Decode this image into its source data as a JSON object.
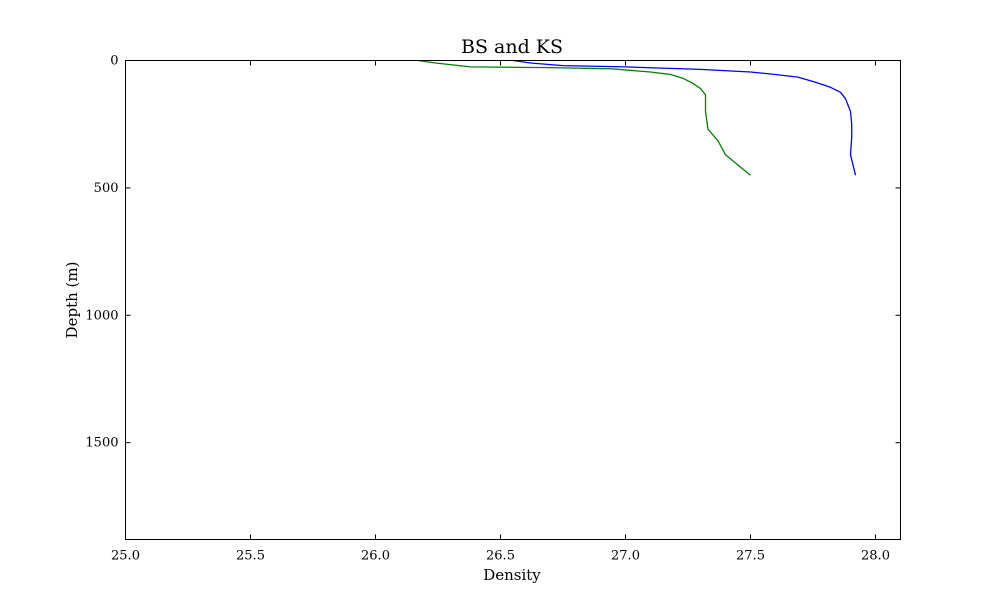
{
  "chart_data": {
    "type": "line",
    "title": "BS and KS",
    "xlabel": "Density",
    "ylabel": "Depth (m)",
    "xlim": [
      25.0,
      28.1
    ],
    "ylim": [
      0,
      1880
    ],
    "y_inverted": true,
    "grid": false,
    "x_ticks": [
      "25.0",
      "25.5",
      "26.0",
      "26.5",
      "27.0",
      "27.5",
      "28.0"
    ],
    "x_tick_values": [
      25.0,
      25.5,
      26.0,
      26.5,
      27.0,
      27.5,
      28.0
    ],
    "y_ticks": [
      "0",
      "500",
      "1000",
      "1500"
    ],
    "y_tick_values": [
      0,
      500,
      1000,
      1500
    ],
    "series": [
      {
        "color": "#0000ff",
        "points": [
          [
            26.55,
            0
          ],
          [
            26.62,
            10
          ],
          [
            26.75,
            20
          ],
          [
            27.0,
            25
          ],
          [
            27.3,
            35
          ],
          [
            27.5,
            45
          ],
          [
            27.6,
            55
          ],
          [
            27.69,
            65
          ],
          [
            27.76,
            85
          ],
          [
            27.82,
            105
          ],
          [
            27.86,
            125
          ],
          [
            27.88,
            150
          ],
          [
            27.9,
            200
          ],
          [
            27.905,
            250
          ],
          [
            27.905,
            300
          ],
          [
            27.9,
            370
          ],
          [
            27.92,
            450
          ]
        ]
      },
      {
        "color": "#008000",
        "points": [
          [
            26.17,
            0
          ],
          [
            26.24,
            10
          ],
          [
            26.38,
            25
          ],
          [
            26.7,
            28
          ],
          [
            26.95,
            33
          ],
          [
            27.1,
            45
          ],
          [
            27.18,
            55
          ],
          [
            27.23,
            70
          ],
          [
            27.27,
            90
          ],
          [
            27.3,
            110
          ],
          [
            27.32,
            135
          ],
          [
            27.32,
            200
          ],
          [
            27.33,
            270
          ],
          [
            27.37,
            315
          ],
          [
            27.4,
            370
          ],
          [
            27.5,
            450
          ]
        ]
      }
    ]
  }
}
